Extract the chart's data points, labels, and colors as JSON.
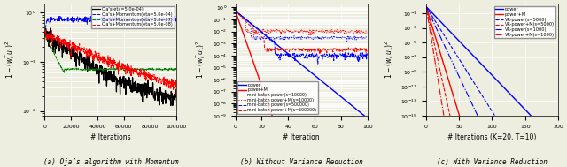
{
  "fig_width": 6.4,
  "fig_height": 1.89,
  "dpi": 100,
  "background_color": "#eeeee0",
  "grid_color": "white",
  "font_size": 5.5,
  "tick_size": 4.5,
  "subplot_a": {
    "title": "(a) Oja’s algorithm with Momentum",
    "xlabel": "# Iterations",
    "ylabel": "$1-(w_t^T u_1)^2$",
    "xlim": [
      0,
      100000
    ],
    "ylim": [
      0.008,
      1.5
    ],
    "xticks": [
      0,
      20000,
      40000,
      60000,
      80000,
      100000
    ],
    "xticklabels": [
      "0",
      "20000",
      "40000",
      "60000",
      "80000",
      "100000"
    ],
    "lines": [
      {
        "label": "Oja's(eta=5.0e-04)",
        "color": "black",
        "lw": 0.9,
        "ls": "-"
      },
      {
        "label": "Oja's+Momentum(eta=5.0e-04)",
        "color": "blue",
        "lw": 0.7,
        "ls": "--"
      },
      {
        "label": "Oja's+Momentum(eta=5.0e-07)",
        "color": "green",
        "lw": 0.7,
        "ls": "--"
      },
      {
        "label": "Oja's+Momentum(eta=5.0e-08)",
        "color": "red",
        "lw": 0.7,
        "ls": "--"
      }
    ]
  },
  "subplot_b": {
    "title": "(b) Without Variance Reduction",
    "xlabel": "# Iteration",
    "ylabel": "$1-(w_t^T u_1)^2$",
    "xlim": [
      0,
      100
    ],
    "ylim": [
      1e-09,
      2.0
    ],
    "xticks": [
      0,
      20,
      40,
      60,
      80,
      100
    ],
    "lines": [
      {
        "label": "power",
        "color": "blue",
        "lw": 1.0,
        "ls": "-"
      },
      {
        "label": "power+M",
        "color": "red",
        "lw": 1.0,
        "ls": "-"
      },
      {
        "label": "mini-batch power(s=10000)",
        "color": "blue",
        "lw": 0.7,
        "ls": ":"
      },
      {
        "label": "mini-batch power+M(s=10000)",
        "color": "red",
        "lw": 0.7,
        "ls": ":"
      },
      {
        "label": "mini-batch power(s=500000)",
        "color": "blue",
        "lw": 0.7,
        "ls": "--"
      },
      {
        "label": "mini-batch power+M(s=500000)",
        "color": "red",
        "lw": 0.7,
        "ls": "--"
      }
    ]
  },
  "subplot_c": {
    "title": "(c) With Variance Reduction",
    "xlabel": "# Iterations (K=20, T=10)",
    "ylabel": "$1-(w_t^T u_1)^2$",
    "xlim": [
      0,
      200
    ],
    "ylim": [
      1e-15,
      2.0
    ],
    "xticks": [
      0,
      50,
      100,
      150,
      200
    ],
    "lines": [
      {
        "label": "power",
        "color": "blue",
        "lw": 1.0,
        "ls": "-"
      },
      {
        "label": "power+M",
        "color": "red",
        "lw": 1.0,
        "ls": "-"
      },
      {
        "label": "VR-power(s=5000)",
        "color": "blue",
        "lw": 0.8,
        "ls": "--"
      },
      {
        "label": "VR-power+M(s=5000)",
        "color": "red",
        "lw": 0.8,
        "ls": "--"
      },
      {
        "label": "VR-power(s=1000)",
        "color": "blue",
        "lw": 0.8,
        "ls": "-."
      },
      {
        "label": "VR-power+M(s=1000)",
        "color": "red",
        "lw": 0.8,
        "ls": "-."
      }
    ]
  }
}
